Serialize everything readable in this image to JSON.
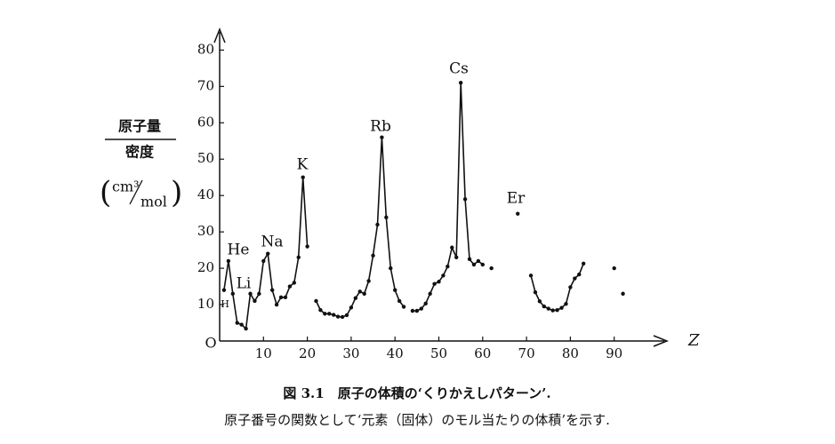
{
  "chart_data": {
    "type": "line",
    "x_label": "Z",
    "origin_label": "O",
    "y_label": {
      "numerator": "原子量",
      "denominator": "密度",
      "unit_numerator": "cm³",
      "unit_denominator": "mol"
    },
    "caption": [
      "図 3.1　原子の体積の‘くりかえしパターン’.",
      "原子番号の関数として‘元素（固体）のモル当たりの体積’を示す."
    ],
    "annotations": [
      "H",
      "He",
      "Li",
      "Na",
      "K",
      "Rb",
      "Cs",
      "Er"
    ],
    "xlim": [
      0,
      100
    ],
    "ylim": [
      0,
      84
    ],
    "xticks": [
      10,
      20,
      30,
      40,
      50,
      60,
      70,
      80,
      90
    ],
    "yticks": [
      10,
      20,
      30,
      40,
      50,
      60,
      70,
      80
    ],
    "color": "#111111",
    "x": [
      1,
      2,
      3,
      4,
      5,
      6,
      7,
      8,
      9,
      10,
      11,
      12,
      13,
      14,
      15,
      16,
      17,
      18,
      19,
      20,
      21,
      22,
      23,
      24,
      25,
      26,
      27,
      28,
      29,
      30,
      31,
      32,
      33,
      34,
      35,
      36,
      37,
      38,
      39,
      40,
      41,
      42,
      43,
      44,
      45,
      46,
      47,
      48,
      49,
      50,
      51,
      52,
      53,
      54,
      55,
      56,
      57,
      58,
      59,
      60,
      61,
      62,
      63,
      68,
      69,
      71,
      72,
      73,
      74,
      75,
      76,
      77,
      78,
      79,
      80,
      81,
      82,
      83,
      84,
      90,
      91,
      92
    ],
    "values": [
      14,
      22,
      13,
      5,
      4.5,
      3.4,
      13,
      11,
      13,
      22,
      24,
      14,
      10,
      12,
      12,
      15,
      16,
      23,
      45,
      26,
      null,
      11,
      8.5,
      7.5,
      7.5,
      7.2,
      6.7,
      6.6,
      7.1,
      9.2,
      11.8,
      13.6,
      13,
      16.5,
      23.5,
      32,
      56,
      34,
      20,
      14,
      11,
      9.4,
      null,
      8.3,
      8.3,
      8.9,
      10.3,
      13,
      15.7,
      16.3,
      18,
      20.5,
      25.7,
      23,
      71,
      39,
      22.5,
      21,
      22,
      21,
      null,
      20,
      null,
      35,
      null,
      18,
      13.4,
      10.9,
      9.5,
      8.9,
      8.4,
      8.5,
      9.1,
      10.2,
      14.8,
      17.2,
      18.3,
      21.3,
      null,
      20,
      null,
      13
    ]
  }
}
